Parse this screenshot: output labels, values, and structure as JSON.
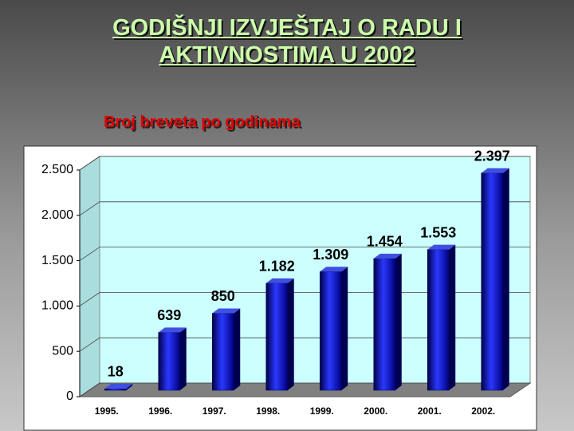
{
  "chart_data": {
    "type": "bar3d",
    "title": "GODIŠNJI IZVJEŠTAJ O RADU I AKTIVNOSTIMA U 2002",
    "subtitle": "Broj breveta po godinama",
    "categories": [
      "1995.",
      "1996.",
      "1997.",
      "1998.",
      "1999.",
      "2000.",
      "2001.",
      "2002."
    ],
    "values": [
      18,
      639,
      850,
      1182,
      1309,
      1454,
      1553,
      2397
    ],
    "value_labels": [
      "18",
      "639",
      "850",
      "1.182",
      "1.309",
      "1.454",
      "1.553",
      "2.397"
    ],
    "color": "#1a22d8",
    "ylim": [
      0,
      2500
    ],
    "yticks": [
      0,
      500,
      {
        "value": 1000,
        "label": "1.000"
      },
      {
        "value": 1500,
        "label": "1.500"
      },
      {
        "value": 2000,
        "label": "2.000"
      },
      {
        "value": 2500,
        "label": "2.500"
      }
    ],
    "grid": true
  }
}
